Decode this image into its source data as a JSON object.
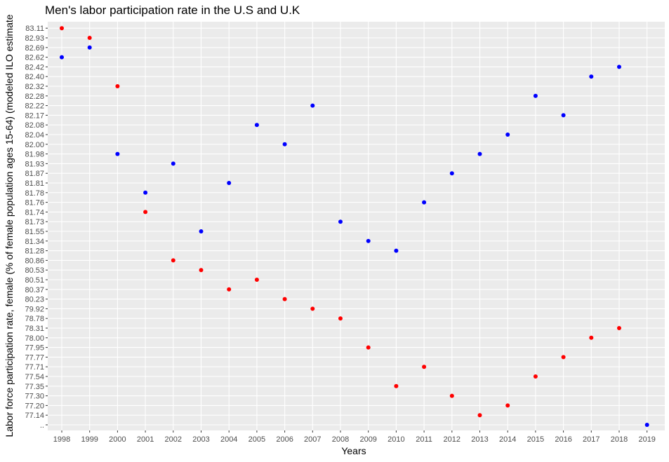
{
  "chart_data": {
    "type": "scatter",
    "title": "Men's labor participation rate in the U.S and U.K",
    "xlabel": "Years",
    "ylabel": "Labor force participation rate, female (% of female population ages 15-64) (modeled ILO estimate",
    "x_categories": [
      "1998",
      "1999",
      "2000",
      "2001",
      "2002",
      "2003",
      "2004",
      "2005",
      "2006",
      "2007",
      "2008",
      "2009",
      "2010",
      "2011",
      "2012",
      "2013",
      "2014",
      "2015",
      "2016",
      "2017",
      "2018",
      "2019"
    ],
    "y_categories": [
      "..",
      "77.14",
      "77.20",
      "77.30",
      "77.35",
      "77.54",
      "77.71",
      "77.77",
      "77.95",
      "78.00",
      "78.31",
      "78.78",
      "79.92",
      "80.23",
      "80.37",
      "80.51",
      "80.53",
      "80.86",
      "81.28",
      "81.34",
      "81.55",
      "81.73",
      "81.74",
      "81.76",
      "81.78",
      "81.81",
      "81.87",
      "81.93",
      "81.98",
      "82.00",
      "82.04",
      "82.08",
      "82.17",
      "82.22",
      "82.28",
      "82.32",
      "82.40",
      "82.42",
      "82.62",
      "82.69",
      "82.93",
      "83.11"
    ],
    "grid": true,
    "legend": "none",
    "series": [
      {
        "color": "#0000ff",
        "points": [
          {
            "x": "1998",
            "y": "82.62"
          },
          {
            "x": "1999",
            "y": "82.69"
          },
          {
            "x": "2000",
            "y": "81.98"
          },
          {
            "x": "2001",
            "y": "81.78"
          },
          {
            "x": "2002",
            "y": "81.93"
          },
          {
            "x": "2003",
            "y": "81.55"
          },
          {
            "x": "2004",
            "y": "81.81"
          },
          {
            "x": "2005",
            "y": "82.08"
          },
          {
            "x": "2006",
            "y": "82.00"
          },
          {
            "x": "2007",
            "y": "82.22"
          },
          {
            "x": "2008",
            "y": "81.73"
          },
          {
            "x": "2009",
            "y": "81.34"
          },
          {
            "x": "2010",
            "y": "81.28"
          },
          {
            "x": "2011",
            "y": "81.76"
          },
          {
            "x": "2012",
            "y": "81.87"
          },
          {
            "x": "2013",
            "y": "81.98"
          },
          {
            "x": "2014",
            "y": "82.04"
          },
          {
            "x": "2015",
            "y": "82.28"
          },
          {
            "x": "2016",
            "y": "82.17"
          },
          {
            "x": "2017",
            "y": "82.40"
          },
          {
            "x": "2018",
            "y": "82.42"
          },
          {
            "x": "2019",
            "y": ".."
          }
        ]
      },
      {
        "color": "#ff0000",
        "points": [
          {
            "x": "1998",
            "y": "83.11"
          },
          {
            "x": "1999",
            "y": "82.93"
          },
          {
            "x": "2000",
            "y": "82.32"
          },
          {
            "x": "2001",
            "y": "81.74"
          },
          {
            "x": "2002",
            "y": "80.86"
          },
          {
            "x": "2003",
            "y": "80.53"
          },
          {
            "x": "2004",
            "y": "80.37"
          },
          {
            "x": "2005",
            "y": "80.51"
          },
          {
            "x": "2006",
            "y": "80.23"
          },
          {
            "x": "2007",
            "y": "79.92"
          },
          {
            "x": "2008",
            "y": "78.78"
          },
          {
            "x": "2009",
            "y": "77.95"
          },
          {
            "x": "2010",
            "y": "77.35"
          },
          {
            "x": "2011",
            "y": "77.71"
          },
          {
            "x": "2012",
            "y": "77.30"
          },
          {
            "x": "2013",
            "y": "77.14"
          },
          {
            "x": "2014",
            "y": "77.20"
          },
          {
            "x": "2015",
            "y": "77.54"
          },
          {
            "x": "2016",
            "y": "77.77"
          },
          {
            "x": "2017",
            "y": "78.00"
          },
          {
            "x": "2018",
            "y": "78.31"
          }
        ]
      }
    ],
    "panel_background": "#ebebeb",
    "grid_color": "#ffffff"
  }
}
